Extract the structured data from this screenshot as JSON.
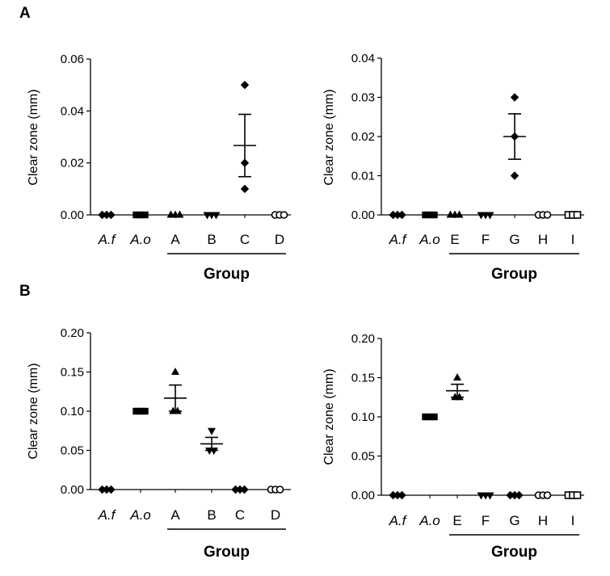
{
  "panel_labels": [
    "A",
    "B"
  ],
  "chart_data": [
    {
      "id": "A1",
      "type": "scatter",
      "panel": "A",
      "ylabel": "Clear zone (mm)",
      "ylim": [
        0,
        0.06
      ],
      "yticks": [
        0,
        0.02,
        0.04,
        0.06
      ],
      "ytick_labels": [
        "0.00",
        "0.02",
        "0.04",
        "0.06"
      ],
      "categories": [
        "A.f",
        "A.o",
        "A",
        "B",
        "C",
        "D"
      ],
      "italic_categories": [
        "A.f",
        "A.o"
      ],
      "group_label": "Group",
      "group_span": [
        "A",
        "D"
      ],
      "series": [
        {
          "category": "A.f",
          "marker": "diamond",
          "values": [
            0,
            0,
            0
          ]
        },
        {
          "category": "A.o",
          "marker": "square",
          "values": [
            0,
            0,
            0
          ]
        },
        {
          "category": "A",
          "marker": "triangle",
          "values": [
            0,
            0,
            0
          ]
        },
        {
          "category": "B",
          "marker": "triangle-down",
          "values": [
            0,
            0,
            0
          ]
        },
        {
          "category": "C",
          "marker": "diamond",
          "values": [
            0.01,
            0.02,
            0.05
          ],
          "mean": 0.0267,
          "sem": 0.012
        },
        {
          "category": "D",
          "marker": "circle-open",
          "values": [
            0,
            0,
            0
          ]
        }
      ]
    },
    {
      "id": "A2",
      "type": "scatter",
      "panel": "A",
      "ylabel": "Clear zone (mm)",
      "ylim": [
        0,
        0.04
      ],
      "yticks": [
        0,
        0.01,
        0.02,
        0.03,
        0.04
      ],
      "ytick_labels": [
        "0.00",
        "0.01",
        "0.02",
        "0.03",
        "0.04"
      ],
      "categories": [
        "A.f",
        "A.o",
        "E",
        "F",
        "G",
        "H",
        "I"
      ],
      "italic_categories": [
        "A.f",
        "A.o"
      ],
      "group_label": "Group",
      "group_span": [
        "E",
        "I"
      ],
      "series": [
        {
          "category": "A.f",
          "marker": "diamond",
          "values": [
            0,
            0,
            0
          ]
        },
        {
          "category": "A.o",
          "marker": "square",
          "values": [
            0,
            0,
            0
          ]
        },
        {
          "category": "E",
          "marker": "triangle",
          "values": [
            0,
            0,
            0
          ]
        },
        {
          "category": "F",
          "marker": "triangle-down",
          "values": [
            0,
            0,
            0
          ]
        },
        {
          "category": "G",
          "marker": "diamond",
          "values": [
            0.01,
            0.02,
            0.03
          ],
          "mean": 0.02,
          "sem": 0.0058
        },
        {
          "category": "H",
          "marker": "circle-open",
          "values": [
            0,
            0,
            0
          ]
        },
        {
          "category": "I",
          "marker": "square-open",
          "values": [
            0,
            0,
            0
          ]
        }
      ]
    },
    {
      "id": "B1",
      "type": "scatter",
      "panel": "B",
      "ylabel": "Clear zone (mm)",
      "ylim": [
        0,
        0.2
      ],
      "yticks": [
        0,
        0.05,
        0.1,
        0.15,
        0.2
      ],
      "ytick_labels": [
        "0.00",
        "0.05",
        "0.10",
        "0.15",
        "0.20"
      ],
      "categories": [
        "A.f",
        "A.o",
        "A",
        "B",
        "C",
        "D"
      ],
      "italic_categories": [
        "A.f",
        "A.o"
      ],
      "group_label": "Group",
      "group_span": [
        "A",
        "D"
      ],
      "series": [
        {
          "category": "A.f",
          "marker": "diamond",
          "values": [
            0,
            0,
            0
          ]
        },
        {
          "category": "A.o",
          "marker": "square",
          "values": [
            0.1,
            0.1,
            0.1
          ]
        },
        {
          "category": "A",
          "marker": "triangle",
          "values": [
            0.1,
            0.1,
            0.15
          ],
          "mean": 0.1167,
          "sem": 0.0167
        },
        {
          "category": "B",
          "marker": "triangle-down",
          "values": [
            0.05,
            0.05,
            0.075
          ],
          "mean": 0.0583,
          "sem": 0.0083
        },
        {
          "category": "C",
          "marker": "diamond",
          "values": [
            0,
            0,
            0
          ]
        },
        {
          "category": "D",
          "marker": "circle-open",
          "values": [
            0,
            0,
            0
          ]
        }
      ]
    },
    {
      "id": "B2",
      "type": "scatter",
      "panel": "B",
      "ylabel": "Clear zone (mm)",
      "ylim": [
        0,
        0.2
      ],
      "yticks": [
        0,
        0.05,
        0.1,
        0.15,
        0.2
      ],
      "ytick_labels": [
        "0.00",
        "0.05",
        "0.10",
        "0.15",
        "0.20"
      ],
      "categories": [
        "A.f",
        "A.o",
        "E",
        "F",
        "G",
        "H",
        "I"
      ],
      "italic_categories": [
        "A.f",
        "A.o"
      ],
      "group_label": "Group",
      "group_span": [
        "E",
        "I"
      ],
      "series": [
        {
          "category": "A.f",
          "marker": "diamond",
          "values": [
            0,
            0,
            0
          ]
        },
        {
          "category": "A.o",
          "marker": "square",
          "values": [
            0.1,
            0.1,
            0.1
          ]
        },
        {
          "category": "E",
          "marker": "triangle",
          "values": [
            0.125,
            0.125,
            0.15
          ],
          "mean": 0.1333,
          "sem": 0.0083
        },
        {
          "category": "F",
          "marker": "triangle-down",
          "values": [
            0,
            0,
            0
          ]
        },
        {
          "category": "G",
          "marker": "diamond",
          "values": [
            0,
            0,
            0
          ]
        },
        {
          "category": "H",
          "marker": "circle-open",
          "values": [
            0,
            0,
            0
          ]
        },
        {
          "category": "I",
          "marker": "square-open",
          "values": [
            0,
            0,
            0
          ]
        }
      ]
    }
  ]
}
